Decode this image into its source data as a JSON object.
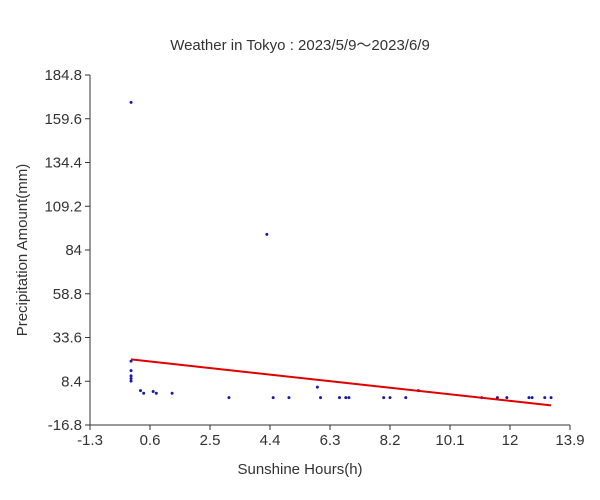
{
  "chart_data": {
    "type": "scatter",
    "title": "Weather in Tokyo : 2023/5/9～2023/6/9",
    "xlabel": "Sunshine Hours(h)",
    "ylabel": "Precipitation Amount(mm)",
    "xlim": [
      -1.3,
      13.9
    ],
    "ylim": [
      -16.8,
      184.8
    ],
    "x_ticks": [
      "-1.3",
      "0.6",
      "2.5",
      "4.4",
      "6.3",
      "8.2",
      "10.1",
      "12",
      "13.9"
    ],
    "y_ticks": [
      "184.8",
      "159.6",
      "134.4",
      "109.2",
      "84",
      "58.8",
      "33.6",
      "8.4",
      "-16.8"
    ],
    "grid": false,
    "point_color": "#1a1aa8",
    "trend_color": "#e00000",
    "points": [
      {
        "x": 0.0,
        "y": 169.0
      },
      {
        "x": 4.3,
        "y": 93.0
      },
      {
        "x": 0.0,
        "y": 20.0
      },
      {
        "x": 0.0,
        "y": 14.5
      },
      {
        "x": 0.0,
        "y": 11.5
      },
      {
        "x": 0.0,
        "y": 10.0
      },
      {
        "x": 0.0,
        "y": 8.5
      },
      {
        "x": 0.3,
        "y": 3.0
      },
      {
        "x": 0.4,
        "y": 1.5
      },
      {
        "x": 0.7,
        "y": 2.5
      },
      {
        "x": 0.8,
        "y": 1.5
      },
      {
        "x": 1.3,
        "y": 1.5
      },
      {
        "x": 3.1,
        "y": -1.0
      },
      {
        "x": 4.5,
        "y": -1.0
      },
      {
        "x": 5.0,
        "y": -1.0
      },
      {
        "x": 5.9,
        "y": 5.0
      },
      {
        "x": 6.0,
        "y": -1.0
      },
      {
        "x": 6.6,
        "y": -1.0
      },
      {
        "x": 6.8,
        "y": -1.0
      },
      {
        "x": 6.9,
        "y": -1.0
      },
      {
        "x": 8.0,
        "y": -1.0
      },
      {
        "x": 8.2,
        "y": -1.0
      },
      {
        "x": 8.7,
        "y": -1.0
      },
      {
        "x": 9.1,
        "y": 3.0
      },
      {
        "x": 11.1,
        "y": -1.0
      },
      {
        "x": 11.6,
        "y": -1.0
      },
      {
        "x": 11.9,
        "y": -1.0
      },
      {
        "x": 12.6,
        "y": -1.0
      },
      {
        "x": 12.7,
        "y": -1.0
      },
      {
        "x": 13.1,
        "y": -1.0
      },
      {
        "x": 13.3,
        "y": -1.0
      }
    ],
    "trendline": {
      "x": [
        0.0,
        13.3
      ],
      "y": [
        21.0,
        -5.5
      ]
    }
  }
}
